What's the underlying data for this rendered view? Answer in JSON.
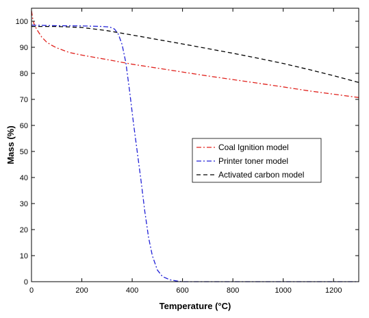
{
  "chart_data": {
    "type": "line",
    "xlabel": "Temperature (°C)",
    "ylabel": "Mass (%)",
    "xlim": [
      0,
      1300
    ],
    "ylim": [
      0,
      105
    ],
    "xticks": [
      0,
      200,
      400,
      600,
      800,
      1000,
      1200
    ],
    "yticks": [
      0,
      10,
      20,
      30,
      40,
      50,
      60,
      70,
      80,
      90,
      100
    ],
    "legend_position": "center-right",
    "grid": false,
    "series": [
      {
        "name": "Coal Ignition model",
        "color": "#e0201b",
        "dash": "dashdot",
        "points": [
          [
            0,
            104
          ],
          [
            5,
            101
          ],
          [
            10,
            99
          ],
          [
            20,
            97
          ],
          [
            40,
            94
          ],
          [
            60,
            92
          ],
          [
            80,
            90.8
          ],
          [
            100,
            89.8
          ],
          [
            150,
            88
          ],
          [
            200,
            87
          ],
          [
            300,
            85.3
          ],
          [
            400,
            83.5
          ],
          [
            500,
            82
          ],
          [
            600,
            80.5
          ],
          [
            700,
            79
          ],
          [
            800,
            77.6
          ],
          [
            900,
            76.2
          ],
          [
            1000,
            74.8
          ],
          [
            1100,
            73.3
          ],
          [
            1200,
            72
          ],
          [
            1300,
            70.7
          ]
        ]
      },
      {
        "name": "Printer toner model",
        "color": "#1f1fd6",
        "dash": "dashdot",
        "points": [
          [
            0,
            98.5
          ],
          [
            100,
            98.3
          ],
          [
            200,
            98.2
          ],
          [
            280,
            98
          ],
          [
            310,
            97.8
          ],
          [
            330,
            97
          ],
          [
            345,
            95
          ],
          [
            360,
            91
          ],
          [
            375,
            84
          ],
          [
            390,
            73
          ],
          [
            405,
            61
          ],
          [
            420,
            50
          ],
          [
            435,
            39
          ],
          [
            450,
            27
          ],
          [
            465,
            17
          ],
          [
            480,
            10
          ],
          [
            500,
            4.5
          ],
          [
            520,
            2
          ],
          [
            550,
            0.7
          ],
          [
            580,
            0.2
          ],
          [
            600,
            0
          ],
          [
            800,
            0
          ],
          [
            1000,
            0
          ],
          [
            1300,
            0
          ]
        ]
      },
      {
        "name": "Activated carbon model",
        "color": "#000000",
        "dash": "dashed",
        "points": [
          [
            0,
            98
          ],
          [
            100,
            98
          ],
          [
            200,
            97.6
          ],
          [
            300,
            96.4
          ],
          [
            400,
            94.7
          ],
          [
            500,
            93
          ],
          [
            600,
            91.3
          ],
          [
            700,
            89.5
          ],
          [
            800,
            87.7
          ],
          [
            900,
            85.8
          ],
          [
            1000,
            83.8
          ],
          [
            1100,
            81.5
          ],
          [
            1200,
            79.1
          ],
          [
            1300,
            76.5
          ]
        ]
      }
    ]
  }
}
